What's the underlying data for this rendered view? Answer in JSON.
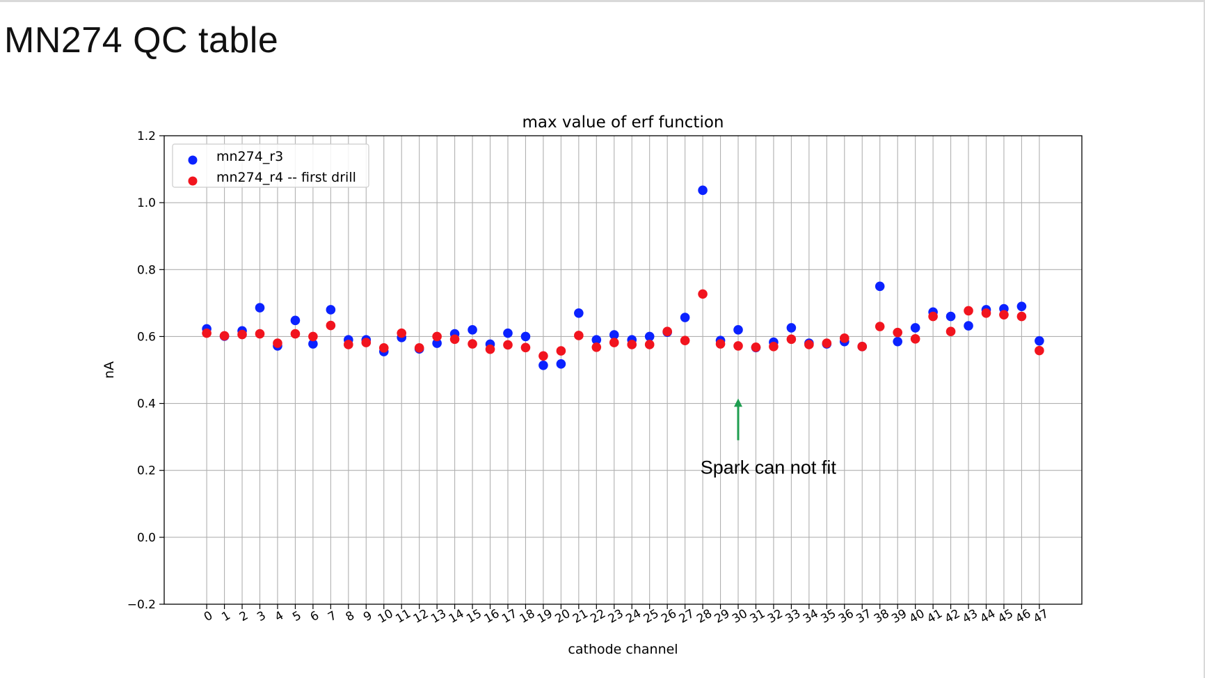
{
  "slide": {
    "title": "MN274 QC table"
  },
  "chart_data": {
    "type": "scatter",
    "title": "max value of erf function",
    "xlabel": "cathode channel",
    "ylabel": "nA",
    "xlim": [
      -2.4,
      49.4
    ],
    "ylim": [
      -0.2,
      1.2
    ],
    "y_ticks": [
      -0.2,
      0.0,
      0.2,
      0.4,
      0.6,
      0.8,
      1.0,
      1.2
    ],
    "y_tick_labels": [
      "−0.2",
      "0.0",
      "0.2",
      "0.4",
      "0.6",
      "0.8",
      "1.0",
      "1.2"
    ],
    "x_ticks": [
      0,
      1,
      2,
      3,
      4,
      5,
      6,
      7,
      8,
      9,
      10,
      11,
      12,
      13,
      14,
      15,
      16,
      17,
      18,
      19,
      20,
      21,
      22,
      23,
      24,
      25,
      26,
      27,
      28,
      29,
      30,
      31,
      32,
      33,
      34,
      35,
      36,
      37,
      38,
      39,
      40,
      41,
      42,
      43,
      44,
      45,
      46,
      47
    ],
    "x_tick_labels": [
      "0",
      "1",
      "2",
      "3",
      "4",
      "5",
      "6",
      "7",
      "8",
      "9",
      "10",
      "11",
      "12",
      "13",
      "14",
      "15",
      "16",
      "17",
      "18",
      "19",
      "20",
      "21",
      "22",
      "23",
      "24",
      "25",
      "26",
      "27",
      "28",
      "29",
      "30",
      "31",
      "32",
      "33",
      "34",
      "35",
      "36",
      "37",
      "38",
      "39",
      "40",
      "41",
      "42",
      "43",
      "44",
      "45",
      "46",
      "47"
    ],
    "x_tick_rotation": -30,
    "grid": true,
    "legend_position": "top-left",
    "series": [
      {
        "name": "mn274_r3",
        "color": "#0b22ff",
        "x": [
          0,
          1,
          2,
          3,
          4,
          5,
          6,
          7,
          8,
          9,
          10,
          11,
          12,
          13,
          14,
          15,
          16,
          17,
          18,
          19,
          20,
          21,
          22,
          23,
          24,
          25,
          26,
          27,
          28,
          29,
          30,
          31,
          32,
          33,
          34,
          35,
          36,
          37,
          38,
          39,
          40,
          41,
          42,
          43,
          44,
          45,
          46,
          47
        ],
        "y": [
          0.623,
          0.601,
          0.617,
          0.686,
          0.572,
          0.648,
          0.578,
          0.68,
          0.59,
          0.59,
          0.555,
          0.597,
          0.563,
          0.58,
          0.608,
          0.62,
          0.577,
          0.61,
          0.6,
          0.514,
          0.518,
          0.67,
          0.59,
          0.605,
          0.59,
          0.6,
          0.613,
          0.657,
          1.037,
          0.588,
          0.62,
          0.567,
          0.583,
          0.626,
          0.58,
          0.578,
          0.585,
          0.57,
          0.75,
          0.585,
          0.626,
          0.673,
          0.66,
          0.632,
          0.68,
          0.683,
          0.69,
          0.587
        ]
      },
      {
        "name": "mn274_r4 -- first drill",
        "color": "#f1141e",
        "x": [
          0,
          1,
          2,
          3,
          4,
          5,
          6,
          7,
          8,
          9,
          10,
          11,
          12,
          13,
          14,
          15,
          16,
          17,
          18,
          19,
          20,
          21,
          22,
          23,
          24,
          25,
          26,
          27,
          28,
          29,
          30,
          31,
          32,
          33,
          34,
          35,
          36,
          37,
          38,
          39,
          40,
          41,
          42,
          43,
          44,
          45,
          46,
          47
        ],
        "y": [
          0.61,
          0.602,
          0.606,
          0.608,
          0.58,
          0.608,
          0.6,
          0.633,
          0.576,
          0.582,
          0.566,
          0.61,
          0.566,
          0.6,
          0.592,
          0.578,
          0.562,
          0.575,
          0.567,
          0.542,
          0.557,
          0.603,
          0.568,
          0.582,
          0.576,
          0.576,
          0.615,
          0.588,
          0.727,
          0.578,
          0.572,
          0.568,
          0.57,
          0.592,
          0.576,
          0.58,
          0.595,
          0.57,
          0.63,
          0.612,
          0.593,
          0.66,
          0.615,
          0.677,
          0.67,
          0.665,
          0.66,
          0.558
        ]
      }
    ],
    "annotation": {
      "text": "Spark can not fit",
      "arrow_color": "#1f9e50",
      "arrow_x": 30,
      "arrow_y_from": 0.29,
      "arrow_y_to": 0.415,
      "text_x": 31.7,
      "text_y": 0.19
    }
  }
}
